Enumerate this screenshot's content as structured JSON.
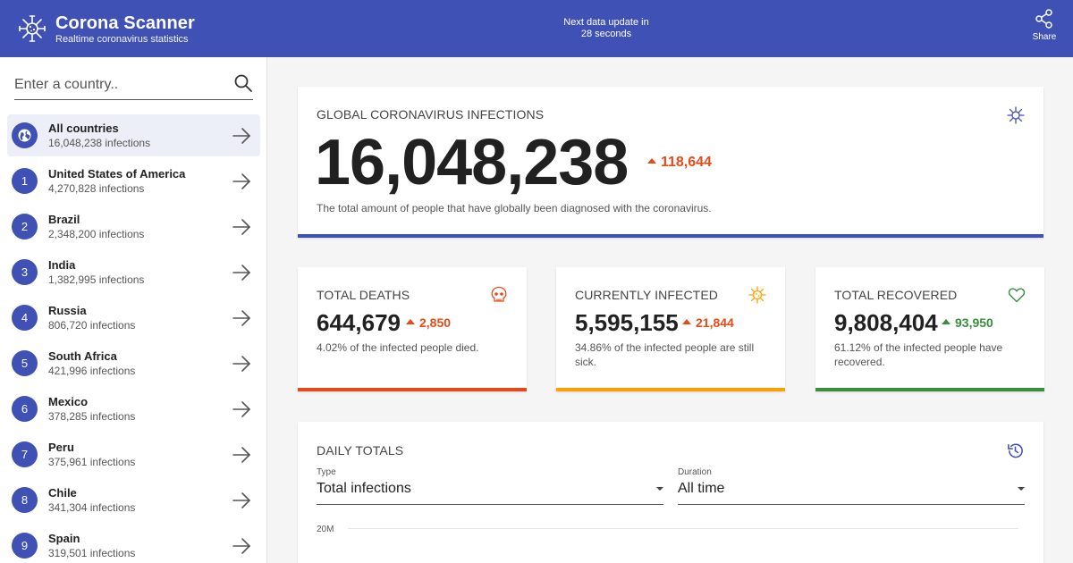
{
  "header": {
    "title": "Corona Scanner",
    "subtitle": "Realtime coronavirus statistics",
    "update_line1": "Next data update in",
    "update_line2": "28 seconds",
    "share_label": "Share",
    "background_color": "#3f51b5"
  },
  "sidebar": {
    "search_placeholder": "Enter a country..",
    "countries": [
      {
        "rank": "",
        "name": "All countries",
        "count": "16,048,238 infections",
        "icon": "globe-icon",
        "active": true
      },
      {
        "rank": "1",
        "name": "United States of America",
        "count": "4,270,828 infections"
      },
      {
        "rank": "2",
        "name": "Brazil",
        "count": "2,348,200 infections"
      },
      {
        "rank": "3",
        "name": "India",
        "count": "1,382,995 infections"
      },
      {
        "rank": "4",
        "name": "Russia",
        "count": "806,720 infections"
      },
      {
        "rank": "5",
        "name": "South Africa",
        "count": "421,996 infections"
      },
      {
        "rank": "6",
        "name": "Mexico",
        "count": "378,285 infections"
      },
      {
        "rank": "7",
        "name": "Peru",
        "count": "375,961 infections"
      },
      {
        "rank": "8",
        "name": "Chile",
        "count": "341,304 infections"
      },
      {
        "rank": "9",
        "name": "Spain",
        "count": "319,501 infections"
      }
    ]
  },
  "global": {
    "label": "Global coronavirus infections",
    "value": "16,048,238",
    "delta": "118,644",
    "description": "The total amount of people that have globally been diagnosed with the coronavirus.",
    "accent_color": "#3f51b5"
  },
  "stats": {
    "deaths": {
      "label": "Total deaths",
      "value": "644,679",
      "delta": "2,850",
      "description": "4.02% of the infected people died.",
      "color": "#e64a19",
      "icon": "skull-icon"
    },
    "infected": {
      "label": "Currently infected",
      "value": "5,595,155",
      "delta": "21,844",
      "description": "34.86% of the infected people are still sick.",
      "color": "#ffa000",
      "icon": "virus-icon"
    },
    "recovered": {
      "label": "Total recovered",
      "value": "9,808,404",
      "delta": "93,950",
      "description": "61.12% of the infected people have recovered.",
      "color": "#388e3c",
      "icon": "heart-icon"
    }
  },
  "daily": {
    "label": "Daily totals",
    "type_label": "Type",
    "type_value": "Total infections",
    "duration_label": "Duration",
    "duration_value": "All time",
    "y_tick_top": "20M"
  }
}
